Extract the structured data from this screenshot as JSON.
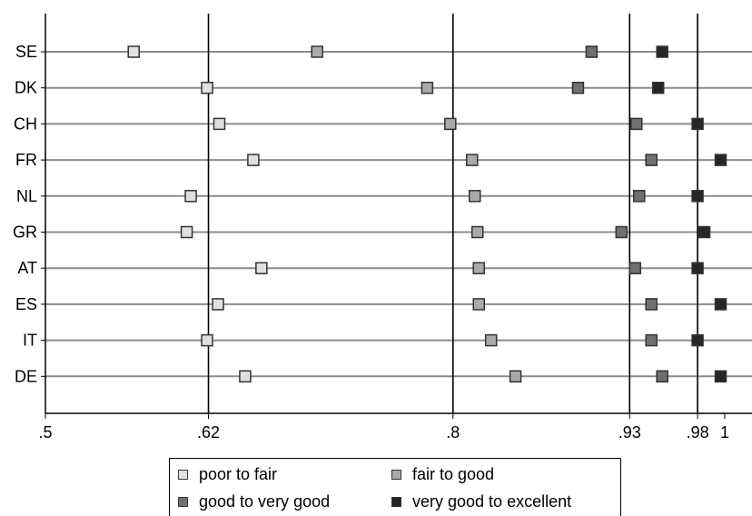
{
  "chart_data": {
    "type": "scatter",
    "title": "",
    "xlabel": "",
    "ylabel": "",
    "xlim": [
      0.5,
      1.0
    ],
    "x_ticks": [
      {
        "value": 0.5,
        "label": ".5"
      },
      {
        "value": 0.62,
        "label": ".62"
      },
      {
        "value": 0.8,
        "label": ".8"
      },
      {
        "value": 0.93,
        "label": ".93"
      },
      {
        "value": 0.98,
        "label": ".98"
      },
      {
        "value": 1.0,
        "label": "1"
      }
    ],
    "reference_lines": [
      0.62,
      0.8,
      0.93,
      0.98
    ],
    "categories": [
      "SE",
      "DK",
      "CH",
      "FR",
      "NL",
      "GR",
      "AT",
      "ES",
      "IT",
      "DE"
    ],
    "series": [
      {
        "name": "poor to fair",
        "color": "#e0e0e0",
        "values": [
          0.565,
          0.619,
          0.628,
          0.653,
          0.607,
          0.604,
          0.659,
          0.627,
          0.619,
          0.647
        ]
      },
      {
        "name": "fair to good",
        "color": "#aaaaaa",
        "values": [
          0.7,
          0.781,
          0.798,
          0.814,
          0.816,
          0.818,
          0.819,
          0.819,
          0.828,
          0.846
        ]
      },
      {
        "name": "good to very good",
        "color": "#707070",
        "values": [
          0.902,
          0.892,
          0.935,
          0.946,
          0.937,
          0.924,
          0.934,
          0.946,
          0.946,
          0.954
        ]
      },
      {
        "name": "very good to excellent",
        "color": "#262626",
        "values": [
          0.954,
          0.951,
          0.98,
          0.997,
          0.98,
          0.985,
          0.98,
          0.997,
          0.98,
          0.997
        ]
      }
    ],
    "legend_position": "bottom",
    "grid": true
  }
}
